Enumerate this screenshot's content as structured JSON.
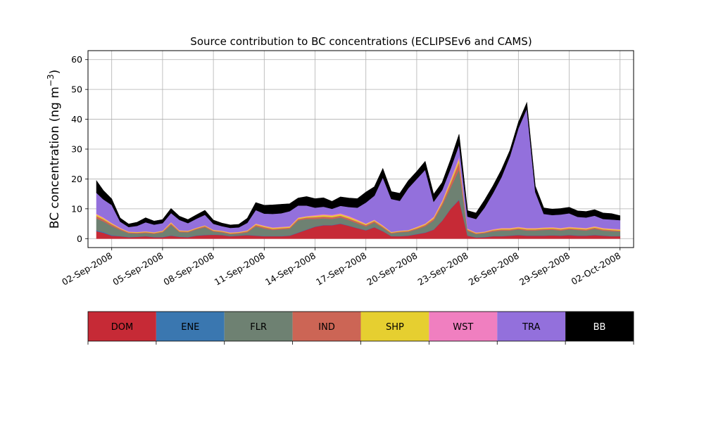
{
  "chart_data": {
    "type": "area",
    "stacked": true,
    "title": "Source contribution to BC concentrations (ECLIPSEv6 and CAMS)",
    "ylabel_main": "BC concentration (ng m",
    "ylabel_unit_sup": "−3",
    "ylabel_close": ")",
    "xlabel": "",
    "grid": true,
    "ylim": [
      -3,
      63
    ],
    "yticks": [
      0,
      10,
      20,
      30,
      40,
      50,
      60
    ],
    "xlim_days": [
      -1.4,
      30.8
    ],
    "xticks": [
      {
        "day": 0,
        "label": "02-Sep-2008"
      },
      {
        "day": 3,
        "label": "05-Sep-2008"
      },
      {
        "day": 6,
        "label": "08-Sep-2008"
      },
      {
        "day": 9,
        "label": "11-Sep-2008"
      },
      {
        "day": 12,
        "label": "14-Sep-2008"
      },
      {
        "day": 15,
        "label": "17-Sep-2008"
      },
      {
        "day": 18,
        "label": "20-Sep-2008"
      },
      {
        "day": 21,
        "label": "23-Sep-2008"
      },
      {
        "day": 24,
        "label": "26-Sep-2008"
      },
      {
        "day": 27,
        "label": "29-Sep-2008"
      },
      {
        "day": 30,
        "label": "02-Oct-2008"
      }
    ],
    "x_days": [
      -0.9,
      -0.5,
      0,
      0.5,
      1,
      1.5,
      2,
      2.5,
      3,
      3.5,
      4,
      4.5,
      5,
      5.5,
      6,
      6.5,
      7,
      7.5,
      8,
      8.5,
      9,
      9.5,
      10,
      10.5,
      11,
      11.5,
      12,
      12.5,
      13,
      13.5,
      14,
      14.5,
      15,
      15.5,
      16,
      16.5,
      17,
      17.5,
      18,
      18.5,
      19,
      19.5,
      20,
      20.5,
      21,
      21.5,
      22,
      22.5,
      23,
      23.5,
      24,
      24.5,
      25,
      25.5,
      26,
      26.5,
      27,
      27.5,
      28,
      28.5,
      29,
      29.5,
      30
    ],
    "series": [
      {
        "name": "DOM",
        "color": "#c62a36",
        "values": [
          2.5,
          2,
          1,
          0.8,
          0.5,
          0.6,
          0.8,
          0.5,
          0.5,
          1,
          0.6,
          0.5,
          1,
          1.2,
          1.3,
          1.2,
          0.8,
          1,
          1.2,
          1,
          0.8,
          0.8,
          0.8,
          1,
          2,
          3,
          4,
          4.5,
          4.5,
          5,
          4.3,
          3.5,
          2.8,
          3.8,
          2.5,
          0.8,
          0.8,
          1,
          1.5,
          2,
          3,
          6,
          10,
          13,
          1,
          0.4,
          0.5,
          0.8,
          0.8,
          1,
          1.2,
          1,
          1,
          1,
          1.1,
          1,
          1.2,
          1,
          1,
          1.2,
          1,
          0.8,
          0.8
        ]
      },
      {
        "name": "ENE",
        "color": "#3a77b0",
        "values": [
          0.3,
          0.3,
          0.2,
          0.1,
          0.1,
          0.1,
          0.1,
          0.1,
          0.1,
          0.1,
          0.1,
          0.1,
          0.1,
          0.1,
          0.1,
          0.1,
          0.1,
          0.1,
          0.1,
          0.1,
          0.1,
          0.1,
          0.1,
          0.1,
          0.1,
          0.1,
          0.1,
          0.1,
          0.1,
          0.1,
          0.1,
          0.1,
          0.1,
          0.1,
          0.1,
          0.1,
          0.1,
          0.1,
          0.1,
          0.1,
          0.1,
          0.1,
          0.1,
          0.2,
          0.1,
          0.1,
          0.1,
          0.1,
          0.1,
          0.1,
          0.1,
          0.1,
          0.1,
          0.1,
          0.1,
          0.1,
          0.1,
          0.1,
          0.1,
          0.1,
          0.1,
          0.1,
          0.1
        ]
      },
      {
        "name": "FLR",
        "color": "#6e8172",
        "values": [
          4,
          3.5,
          3,
          2,
          1.2,
          1,
          1,
          1,
          1.5,
          3.5,
          1.5,
          1.5,
          2,
          2.5,
          1,
          0.8,
          0.6,
          0.6,
          0.8,
          3,
          2.5,
          2,
          2.2,
          2.2,
          4,
          3.5,
          2.5,
          2.2,
          2,
          2,
          1.8,
          1.5,
          1.2,
          1.5,
          1,
          0.8,
          1.2,
          1.2,
          1.5,
          2,
          3,
          5,
          7,
          10,
          1.5,
          1,
          1.2,
          1.5,
          1.8,
          1.6,
          1.8,
          1.6,
          1.6,
          1.8,
          1.8,
          1.6,
          1.8,
          1.8,
          1.6,
          2,
          1.6,
          1.6,
          1.5
        ]
      },
      {
        "name": "IND",
        "color": "#cc6555",
        "values": [
          0.8,
          0.7,
          0.6,
          0.4,
          0.3,
          0.3,
          0.3,
          0.3,
          0.3,
          0.5,
          0.3,
          0.3,
          0.3,
          0.4,
          0.3,
          0.3,
          0.3,
          0.3,
          0.4,
          0.5,
          0.5,
          0.4,
          0.4,
          0.4,
          0.5,
          0.5,
          0.6,
          0.6,
          0.6,
          0.6,
          0.6,
          0.6,
          0.5,
          0.5,
          0.4,
          0.3,
          0.3,
          0.3,
          0.4,
          0.5,
          0.6,
          0.8,
          1.5,
          2.5,
          0.4,
          0.3,
          0.3,
          0.4,
          0.4,
          0.4,
          0.4,
          0.4,
          0.4,
          0.4,
          0.4,
          0.4,
          0.4,
          0.4,
          0.4,
          0.4,
          0.4,
          0.4,
          0.3
        ]
      },
      {
        "name": "SHP",
        "color": "#e6cf30",
        "values": [
          0.5,
          0.4,
          0.3,
          0.2,
          0.2,
          0.2,
          0.2,
          0.2,
          0.2,
          0.3,
          0.2,
          0.2,
          0.2,
          0.2,
          0.2,
          0.2,
          0.2,
          0.2,
          0.2,
          0.3,
          0.3,
          0.3,
          0.3,
          0.3,
          0.3,
          0.3,
          0.4,
          0.5,
          0.5,
          0.5,
          0.5,
          0.4,
          0.3,
          0.3,
          0.3,
          0.2,
          0.2,
          0.2,
          0.3,
          0.3,
          0.4,
          0.5,
          0.8,
          1,
          0.2,
          0.2,
          0.2,
          0.2,
          0.3,
          0.3,
          0.3,
          0.3,
          0.3,
          0.3,
          0.3,
          0.3,
          0.3,
          0.3,
          0.3,
          0.3,
          0.3,
          0.3,
          0.3
        ]
      },
      {
        "name": "WST",
        "color": "#f07fc0",
        "values": [
          0.3,
          0.3,
          0.2,
          0.2,
          0.1,
          0.1,
          0.1,
          0.1,
          0.1,
          0.2,
          0.1,
          0.1,
          0.1,
          0.1,
          0.1,
          0.1,
          0.1,
          0.1,
          0.1,
          0.2,
          0.2,
          0.2,
          0.2,
          0.2,
          0.2,
          0.2,
          0.3,
          0.3,
          0.3,
          0.3,
          0.3,
          0.3,
          0.2,
          0.2,
          0.2,
          0.1,
          0.1,
          0.1,
          0.2,
          0.2,
          0.3,
          0.4,
          0.6,
          0.8,
          0.2,
          0.1,
          0.1,
          0.2,
          0.2,
          0.2,
          0.2,
          0.2,
          0.2,
          0.2,
          0.2,
          0.2,
          0.2,
          0.2,
          0.2,
          0.2,
          0.2,
          0.2,
          0.2
        ]
      },
      {
        "name": "TRA",
        "color": "#9370dc",
        "values": [
          7,
          6,
          6,
          2,
          1.5,
          2,
          3,
          2.5,
          2.5,
          3,
          3.5,
          2.5,
          3,
          3.5,
          2,
          1.5,
          1.5,
          1.5,
          2.5,
          4.5,
          4,
          4.5,
          4.5,
          5,
          4,
          3.5,
          2.5,
          2.5,
          2,
          2.5,
          3,
          4,
          7,
          8,
          16,
          11,
          10,
          14,
          16,
          18,
          5,
          3.5,
          3.5,
          4,
          4,
          4.5,
          8,
          12,
          17,
          24,
          33,
          40,
          12,
          4.5,
          4,
          4.5,
          4.5,
          3.5,
          3.5,
          3.5,
          3,
          3,
          3
        ]
      },
      {
        "name": "BB",
        "color": "#000000",
        "values": [
          4,
          3,
          2,
          1.2,
          1,
          1.2,
          1.5,
          1.2,
          1.2,
          1.5,
          1.2,
          1.2,
          1.3,
          1.5,
          1.2,
          1,
          1,
          1,
          1.5,
          2.5,
          2.8,
          3,
          3,
          2.5,
          2.5,
          3,
          3,
          3,
          2.5,
          3,
          3,
          3,
          3.5,
          3,
          3,
          2.5,
          2.5,
          2.5,
          2.5,
          2.8,
          2.5,
          2.5,
          3,
          3.5,
          2,
          2,
          2.5,
          2.5,
          2.5,
          2,
          2,
          2,
          2,
          2,
          2,
          2,
          2,
          2,
          2,
          2,
          2,
          2,
          1.5
        ]
      }
    ],
    "legend": {
      "position": "bottom",
      "labels": [
        "DOM",
        "ENE",
        "FLR",
        "IND",
        "SHP",
        "WST",
        "TRA",
        "BB"
      ],
      "colors": [
        "#c62a36",
        "#3a77b0",
        "#6e8172",
        "#cc6555",
        "#e6cf30",
        "#f07fc0",
        "#9370dc",
        "#000000"
      ],
      "text_colors": [
        "#000000",
        "#000000",
        "#000000",
        "#000000",
        "#000000",
        "#000000",
        "#000000",
        "#ffffff"
      ]
    }
  }
}
